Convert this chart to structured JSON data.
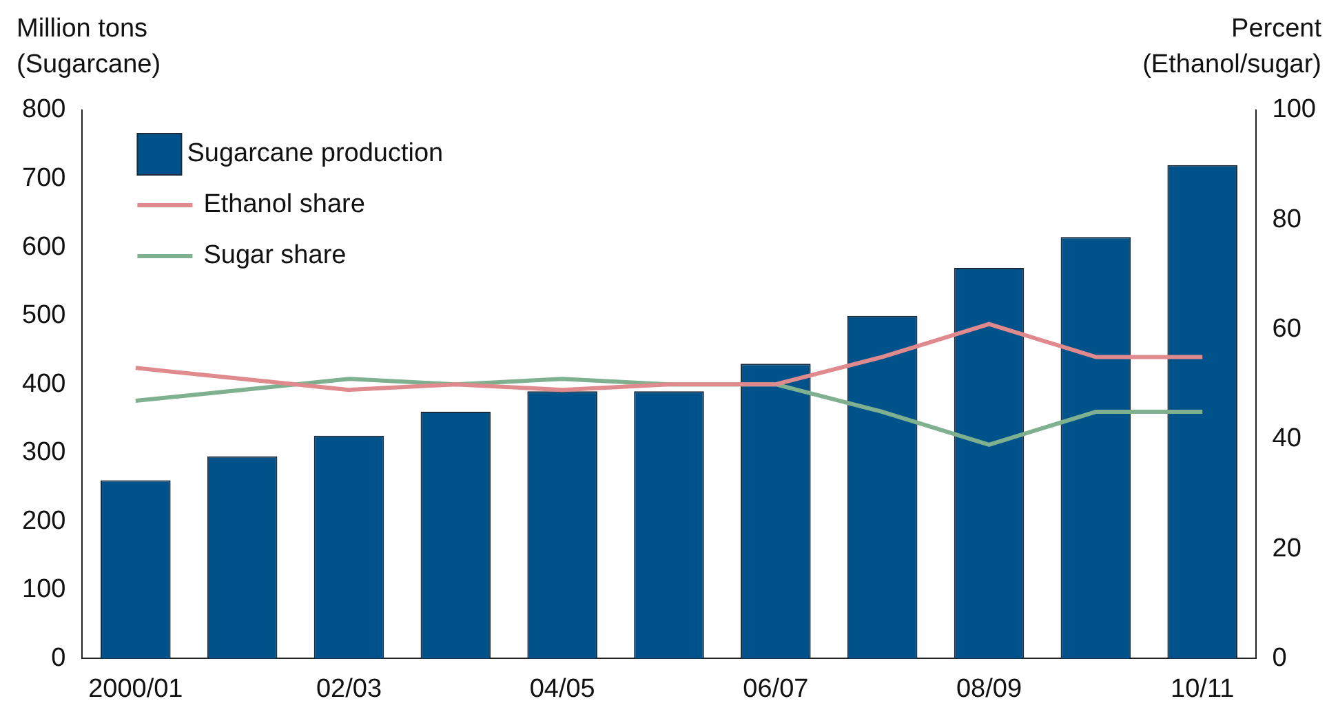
{
  "chart_data": {
    "type": "bar",
    "ylabel": "Million tons\n(Sugarcane)",
    "y2label": "Percent\n(Ethanol/sugar)",
    "categories": [
      "2000/01",
      null,
      "02/03",
      null,
      "04/05",
      null,
      "06/07",
      null,
      "08/09",
      null,
      "10/11"
    ],
    "series": [
      {
        "name": "Sugarcane production",
        "color": "#00538a",
        "values": [
          260,
          295,
          325,
          360,
          390,
          390,
          430,
          500,
          570,
          615,
          720
        ]
      },
      {
        "name": "Ethanol share",
        "type": "line",
        "axis": "y2",
        "color": "#e08a8e",
        "values": [
          53,
          51,
          49,
          50,
          49,
          50,
          50,
          55,
          61,
          55,
          55
        ]
      },
      {
        "name": "Sugar share",
        "type": "line",
        "axis": "y2",
        "color": "#7fb08f",
        "values": [
          47,
          49,
          51,
          50,
          51,
          50,
          50,
          45,
          39,
          45,
          45
        ]
      }
    ],
    "ylim": [
      0,
      800
    ],
    "yticks": [
      0,
      100,
      200,
      300,
      400,
      500,
      600,
      700,
      800
    ],
    "y2lim": [
      0,
      100
    ],
    "y2ticks": [
      0,
      20,
      40,
      60,
      80,
      100
    ],
    "legend": "top left",
    "grid": false,
    "marker": "none"
  }
}
